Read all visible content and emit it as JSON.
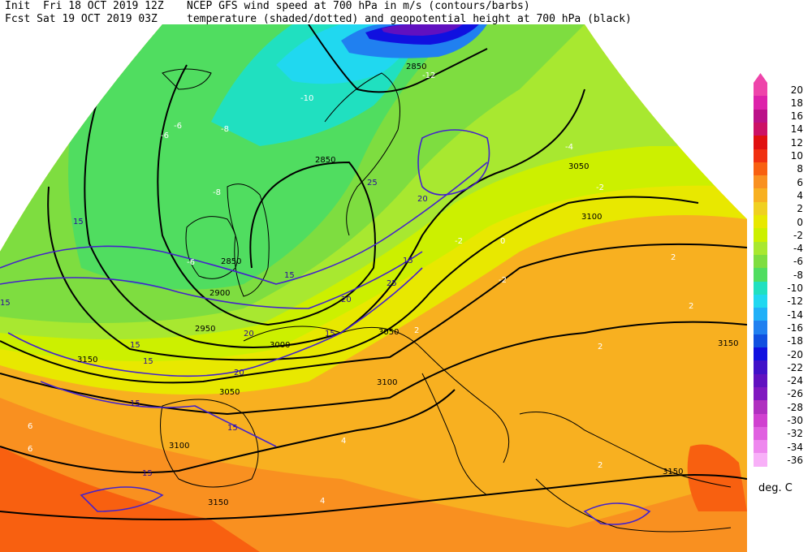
{
  "header": {
    "init_line": "Init  Fri 18 OCT 2019 12Z",
    "fcst_line": "Fcst Sat 19 OCT 2019 03Z",
    "title_line1": "NCEP GFS wind speed at 700 hPa in m/s (contours/barbs)",
    "title_line2": "temperature (shaded/dotted) and geopotential height at 700 hPa (black)"
  },
  "legend": {
    "unit": "deg. C",
    "colors": {
      "20": "#ee44aa",
      "18": "#dd22aa",
      "16": "#bb1188",
      "14": "#cc1166",
      "12": "#e01010",
      "10": "#f03010",
      "8": "#f86010",
      "6": "#f99020",
      "4": "#f8b020",
      "2": "#f0d020",
      "0": "#e8e800",
      "-2": "#ccf000",
      "-4": "#a8e830",
      "-6": "#7edd40",
      "-8": "#50dd60",
      "-10": "#20e0c0",
      "-12": "#20d8f0",
      "-14": "#20b0f8",
      "-16": "#2080f0",
      "-18": "#1050e0",
      "-20": "#1010e0",
      "-22": "#4010c8",
      "-24": "#6010c0",
      "-26": "#8018c0",
      "-28": "#b030c0",
      "-30": "#d040d0",
      "-32": "#e060e0",
      "-34": "#ee88ee",
      "-36": "#f8b0f8"
    },
    "labels": [
      "20",
      "18",
      "16",
      "14",
      "12",
      "10",
      "8",
      "6",
      "4",
      "2",
      "0",
      "-2",
      "-4",
      "-6",
      "-8",
      "-10",
      "-12",
      "-14",
      "-16",
      "-18",
      "-20",
      "-22",
      "-24",
      "-26",
      "-28",
      "-30",
      "-32",
      "-34",
      "-36"
    ]
  },
  "map": {
    "height_labels": [
      "2850",
      "2850",
      "2850",
      "2900",
      "2950",
      "3000",
      "3050",
      "3050",
      "3050",
      "3100",
      "3100",
      "3100",
      "3150",
      "3150",
      "3150",
      "3150"
    ],
    "wind_labels": [
      "15",
      "15",
      "15",
      "15",
      "15",
      "15",
      "15",
      "15",
      "15",
      "20",
      "20",
      "20",
      "20",
      "25",
      "25",
      "15"
    ],
    "temp_labels": [
      "-12",
      "-10",
      "-8",
      "-8",
      "-6",
      "-6",
      "-6",
      "-4",
      "-2",
      "-2",
      "-2",
      "0",
      "2",
      "2",
      "2",
      "2",
      "2",
      "4",
      "4",
      "6",
      "6"
    ]
  }
}
